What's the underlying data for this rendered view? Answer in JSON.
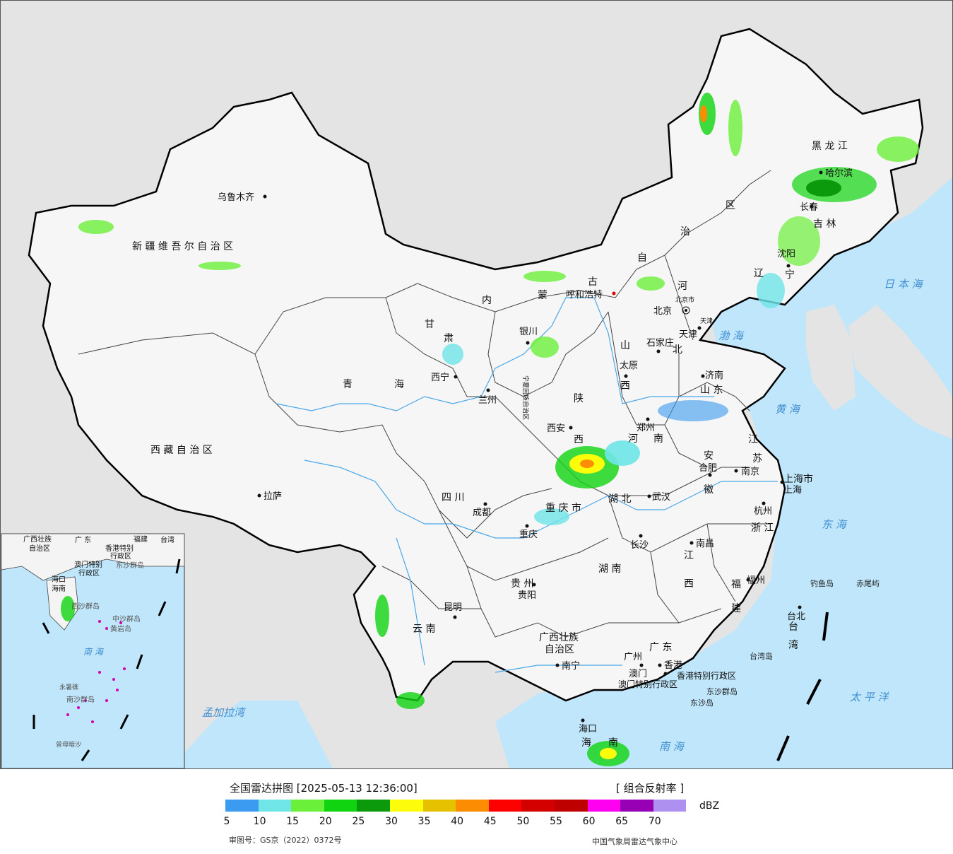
{
  "provinces": [
    {
      "key": "xinjiang",
      "label": "新 疆 维 吾 尔 自 治 区"
    },
    {
      "key": "xizang",
      "label": "西 藏 自 治 区"
    },
    {
      "key": "qinghai_1",
      "label": "青"
    },
    {
      "key": "qinghai_2",
      "label": "海"
    },
    {
      "key": "gansu_1",
      "label": "甘"
    },
    {
      "key": "gansu_2",
      "label": "肃"
    },
    {
      "key": "neimenggu_1",
      "label": "内"
    },
    {
      "key": "neimenggu_2",
      "label": "蒙"
    },
    {
      "key": "neimenggu_3",
      "label": "古"
    },
    {
      "key": "neimenggu_4",
      "label": "自"
    },
    {
      "key": "neimenggu_5",
      "label": "治"
    },
    {
      "key": "neimenggu_6",
      "label": "区"
    },
    {
      "key": "heilongjiang",
      "label": "黑 龙 江"
    },
    {
      "key": "jilin",
      "label": "吉 林"
    },
    {
      "key": "liaoning_1",
      "label": "辽"
    },
    {
      "key": "liaoning_2",
      "label": "宁"
    },
    {
      "key": "hebei_1",
      "label": "河"
    },
    {
      "key": "hebei_2",
      "label": "北"
    },
    {
      "key": "shanxi_1",
      "label": "山"
    },
    {
      "key": "shanxi_2",
      "label": "西"
    },
    {
      "key": "shandong",
      "label": "山 东"
    },
    {
      "key": "shaanxi_1",
      "label": "陕"
    },
    {
      "key": "shaanxi_2",
      "label": "西"
    },
    {
      "key": "henan_1",
      "label": "河"
    },
    {
      "key": "henan_2",
      "label": "南"
    },
    {
      "key": "jiangsu_1",
      "label": "江"
    },
    {
      "key": "jiangsu_2",
      "label": "苏"
    },
    {
      "key": "anhui_1",
      "label": "安"
    },
    {
      "key": "anhui_2",
      "label": "徽"
    },
    {
      "key": "hubei",
      "label": "湖 北"
    },
    {
      "key": "zhejiang",
      "label": "浙 江"
    },
    {
      "key": "sichuan",
      "label": "四 川"
    },
    {
      "key": "chongqing",
      "label": "重 庆 市"
    },
    {
      "key": "hunan",
      "label": "湖 南"
    },
    {
      "key": "jiangxi_1",
      "label": "江"
    },
    {
      "key": "jiangxi_2",
      "label": "西"
    },
    {
      "key": "fujian_1",
      "label": "福"
    },
    {
      "key": "fujian_2",
      "label": "建"
    },
    {
      "key": "guizhou",
      "label": "贵 州"
    },
    {
      "key": "yunnan",
      "label": "云 南"
    },
    {
      "key": "guangxi_1",
      "label": "广西壮族"
    },
    {
      "key": "guangxi_2",
      "label": "自治区"
    },
    {
      "key": "guangdong",
      "label": "广 东"
    },
    {
      "key": "taiwan_1",
      "label": "台"
    },
    {
      "key": "taiwan_2",
      "label": "湾"
    },
    {
      "key": "ningxia",
      "label": "宁夏回族自治区"
    },
    {
      "key": "shanghai",
      "label": "上海市"
    },
    {
      "key": "hongkong",
      "label": "香港特别行政区"
    },
    {
      "key": "macau",
      "label": "澳门特别行政区"
    },
    {
      "key": "hainan_1",
      "label": "海"
    },
    {
      "key": "hainan_2",
      "label": "南"
    },
    {
      "key": "beijing_small",
      "label": "北京市"
    },
    {
      "key": "tianjin_small",
      "label": "天津"
    }
  ],
  "cities": [
    {
      "key": "urumqi",
      "label": "乌鲁木齐"
    },
    {
      "key": "lhasa",
      "label": "拉萨"
    },
    {
      "key": "xining",
      "label": "西宁"
    },
    {
      "key": "lanzhou",
      "label": "兰州"
    },
    {
      "key": "yinchuan",
      "label": "银川"
    },
    {
      "key": "hohhot",
      "label": "呼和浩特"
    },
    {
      "key": "harbin",
      "label": "哈尔滨"
    },
    {
      "key": "changchun",
      "label": "长春"
    },
    {
      "key": "shenyang",
      "label": "沈阳"
    },
    {
      "key": "beijing",
      "label": "北京"
    },
    {
      "key": "tianjin",
      "label": "天津"
    },
    {
      "key": "shijiazhuang",
      "label": "石家庄"
    },
    {
      "key": "taiyuan",
      "label": "太原"
    },
    {
      "key": "jinan",
      "label": "济南"
    },
    {
      "key": "zhengzhou",
      "label": "郑州"
    },
    {
      "key": "xian",
      "label": "西安"
    },
    {
      "key": "hefei",
      "label": "合肥"
    },
    {
      "key": "nanjing",
      "label": "南京"
    },
    {
      "key": "shanghai",
      "label": "上海"
    },
    {
      "key": "hangzhou",
      "label": "杭州"
    },
    {
      "key": "wuhan",
      "label": "武汉"
    },
    {
      "key": "chengdu",
      "label": "成都"
    },
    {
      "key": "chongqing",
      "label": "重庆"
    },
    {
      "key": "changsha",
      "label": "长沙"
    },
    {
      "key": "nanchang",
      "label": "南昌"
    },
    {
      "key": "fuzhou",
      "label": "福州"
    },
    {
      "key": "guiyang",
      "label": "贵阳"
    },
    {
      "key": "kunming",
      "label": "昆明"
    },
    {
      "key": "nanning",
      "label": "南宁"
    },
    {
      "key": "guangzhou",
      "label": "广州"
    },
    {
      "key": "hongkong",
      "label": "香港"
    },
    {
      "key": "macau",
      "label": "澳门"
    },
    {
      "key": "haikou",
      "label": "海口"
    },
    {
      "key": "taibei",
      "label": "台北"
    }
  ],
  "seas": [
    {
      "key": "bohai",
      "label": "渤 海"
    },
    {
      "key": "huanghai",
      "label": "黄 海"
    },
    {
      "key": "donghai",
      "label": "东 海"
    },
    {
      "key": "nanhai",
      "label": "南 海"
    },
    {
      "key": "ribenhai",
      "label": "日 本 海"
    },
    {
      "key": "taipingyang",
      "label": "太 平 洋"
    },
    {
      "key": "mengjialawan",
      "label": "孟加拉湾"
    }
  ],
  "islands": [
    {
      "key": "diaoyudao",
      "label": "钓鱼岛"
    },
    {
      "key": "chiweiyu",
      "label": "赤尾屿"
    },
    {
      "key": "taiwandao",
      "label": "台湾岛"
    },
    {
      "key": "dongshaqundao",
      "label": "东沙群岛"
    },
    {
      "key": "dongshadao",
      "label": "东沙岛"
    }
  ],
  "inset": {
    "labels": [
      {
        "key": "guangxi",
        "label": "广西壮族"
      },
      {
        "key": "guangxi2",
        "label": "自治区"
      },
      {
        "key": "guangdong",
        "label": "广 东"
      },
      {
        "key": "fujian",
        "label": "福建"
      },
      {
        "key": "taiwan",
        "label": "台湾"
      },
      {
        "key": "hk",
        "label": "香港特别"
      },
      {
        "key": "hk2",
        "label": "行政区"
      },
      {
        "key": "macau",
        "label": "澳门特别"
      },
      {
        "key": "macau2",
        "label": "行政区"
      },
      {
        "key": "dongsha",
        "label": "东沙群岛"
      },
      {
        "key": "haikou",
        "label": "海口"
      },
      {
        "key": "hainan",
        "label": "海南"
      },
      {
        "key": "xisha",
        "label": "西沙群岛"
      },
      {
        "key": "zhongsha",
        "label": "中沙群岛"
      },
      {
        "key": "huangyandao",
        "label": "黄岩岛"
      },
      {
        "key": "yongshu",
        "label": "永暑礁"
      },
      {
        "key": "nansha",
        "label": "南沙群岛"
      },
      {
        "key": "zengmu",
        "label": "曾母暗沙"
      }
    ],
    "sea": "南 海"
  },
  "legend": {
    "title": "全国雷达拼图 [2025-05-13 12:36:00]",
    "product": "[ 组合反射率 ]",
    "unit": "dBZ",
    "colors": [
      "#3b9bf0",
      "#6fe5e8",
      "#6bf03a",
      "#10d410",
      "#0b9a0b",
      "#fdfc0a",
      "#e6c100",
      "#fc8c01",
      "#fd0000",
      "#d40000",
      "#bf0000",
      "#ff00f0",
      "#9700b5",
      "#ad90f0"
    ],
    "ticks": [
      "5",
      "10",
      "15",
      "20",
      "25",
      "30",
      "35",
      "40",
      "45",
      "50",
      "55",
      "60",
      "65",
      "70"
    ],
    "review_number": "审图号：GS京（2022）0372号",
    "publisher": "中国气象局雷达气象中心"
  }
}
